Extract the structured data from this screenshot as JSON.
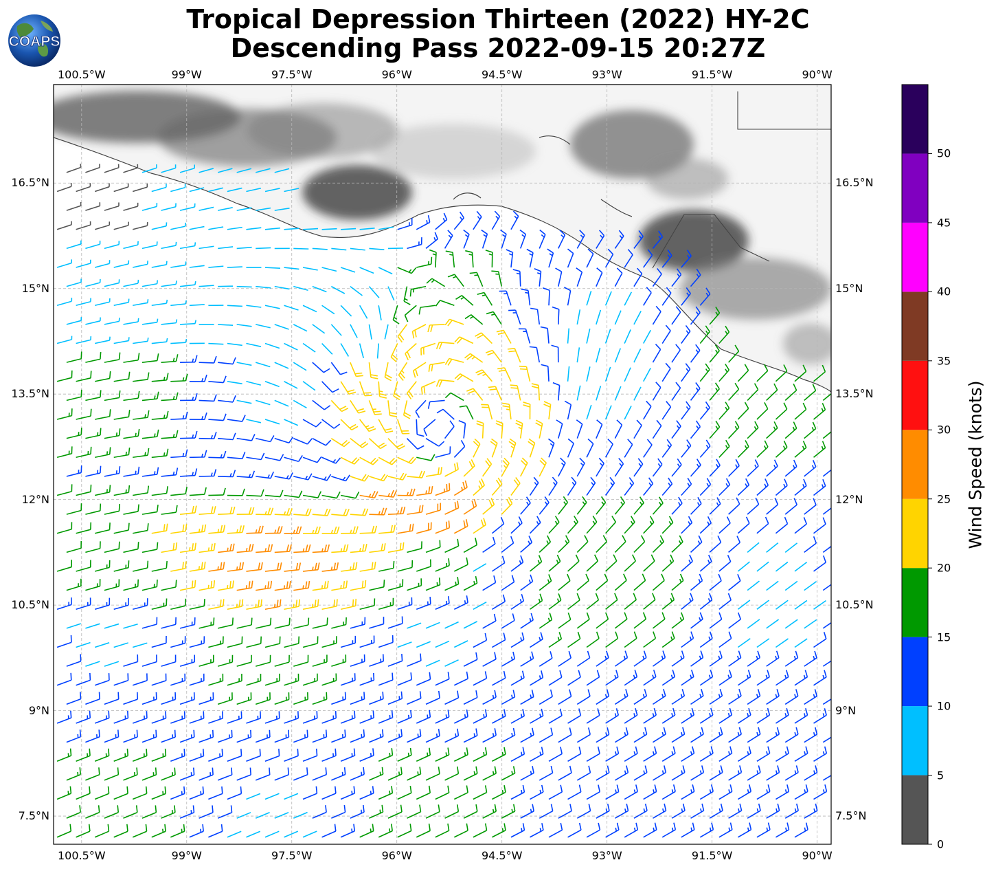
{
  "title": {
    "line1": "Tropical Depression Thirteen (2022) HY-2C",
    "line2": "Descending Pass 2022-09-15 20:27Z"
  },
  "logo": {
    "text": "COAPS",
    "icon": "globe-icon"
  },
  "map": {
    "lon_range": [
      -100.9,
      -89.8
    ],
    "lat_range": [
      7.1,
      17.9
    ],
    "lon_ticks": [
      {
        "value": -100.5,
        "label": "100.5°W"
      },
      {
        "value": -99,
        "label": "99°W"
      },
      {
        "value": -97.5,
        "label": "97.5°W"
      },
      {
        "value": -96,
        "label": "96°W"
      },
      {
        "value": -94.5,
        "label": "94.5°W"
      },
      {
        "value": -93,
        "label": "93°W"
      },
      {
        "value": -91.5,
        "label": "91.5°W"
      },
      {
        "value": -90,
        "label": "90°W"
      }
    ],
    "lat_ticks": [
      {
        "value": 16.5,
        "label": "16.5°N"
      },
      {
        "value": 15,
        "label": "15°N"
      },
      {
        "value": 13.5,
        "label": "13.5°N"
      },
      {
        "value": 12,
        "label": "12°N"
      },
      {
        "value": 10.5,
        "label": "10.5°N"
      },
      {
        "value": 9,
        "label": "9°N"
      },
      {
        "value": 7.5,
        "label": "7.5°N"
      }
    ],
    "storm_center": {
      "lon": -95.4,
      "lat": 13.0
    },
    "grid": true,
    "land_shading": "grayscale topography"
  },
  "colorbar": {
    "label": "Wind Speed (knots)",
    "unit": "knots",
    "ticks": [
      0,
      5,
      10,
      15,
      20,
      25,
      30,
      35,
      40,
      45,
      50
    ],
    "bins": [
      {
        "min": 0,
        "max": 5,
        "color": "#555555"
      },
      {
        "min": 5,
        "max": 10,
        "color": "#00bfff"
      },
      {
        "min": 10,
        "max": 15,
        "color": "#0040ff"
      },
      {
        "min": 15,
        "max": 20,
        "color": "#009900"
      },
      {
        "min": 20,
        "max": 25,
        "color": "#ffd400"
      },
      {
        "min": 25,
        "max": 30,
        "color": "#ff8c00"
      },
      {
        "min": 30,
        "max": 35,
        "color": "#ff1010"
      },
      {
        "min": 35,
        "max": 40,
        "color": "#7f3a24"
      },
      {
        "min": 40,
        "max": 45,
        "color": "#ff00ff"
      },
      {
        "min": 45,
        "max": 50,
        "color": "#8000c0"
      },
      {
        "min": 50,
        "max": 55,
        "color": "#2a005c"
      }
    ]
  }
}
